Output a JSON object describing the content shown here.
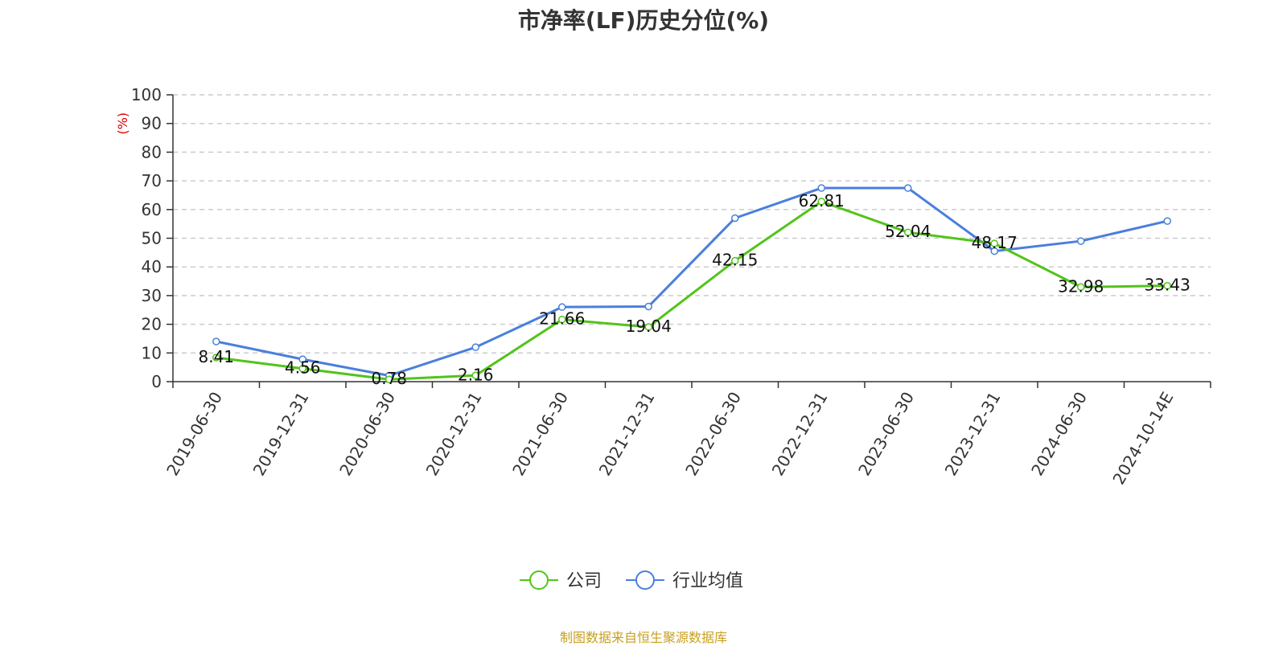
{
  "chart_data": {
    "type": "line",
    "title": "市净率(LF)历史分位(%)",
    "ylabel": "(%)",
    "ylim": [
      0,
      100
    ],
    "yticks": [
      0,
      10,
      20,
      30,
      40,
      50,
      60,
      70,
      80,
      90,
      100
    ],
    "grid": true,
    "legend_position": "bottom",
    "categories": [
      "2019-06-30",
      "2019-12-31",
      "2020-06-30",
      "2020-12-31",
      "2021-06-30",
      "2021-12-31",
      "2022-06-30",
      "2022-12-31",
      "2023-06-30",
      "2023-12-31",
      "2024-06-30",
      "2024-10-14E"
    ],
    "series": [
      {
        "name": "公司",
        "color": "#52c41a",
        "show_labels": true,
        "labels": [
          "8.41",
          "4.56",
          "0.78",
          "2.16",
          "21.66",
          "19.04",
          "42.15",
          "62.81",
          "52.04",
          "48.17",
          "32.98",
          "33.43"
        ],
        "values": [
          8.41,
          4.56,
          0.78,
          2.16,
          21.66,
          19.04,
          42.15,
          62.81,
          52.04,
          48.17,
          32.98,
          33.43
        ]
      },
      {
        "name": "行业均值",
        "color": "#4a7fdc",
        "show_labels": false,
        "values": [
          14.0,
          7.8,
          2.1,
          12.0,
          26.0,
          26.2,
          57.0,
          67.5,
          67.5,
          45.5,
          49.0,
          56.0
        ]
      }
    ]
  },
  "source": "制图数据来自恒生聚源数据库"
}
